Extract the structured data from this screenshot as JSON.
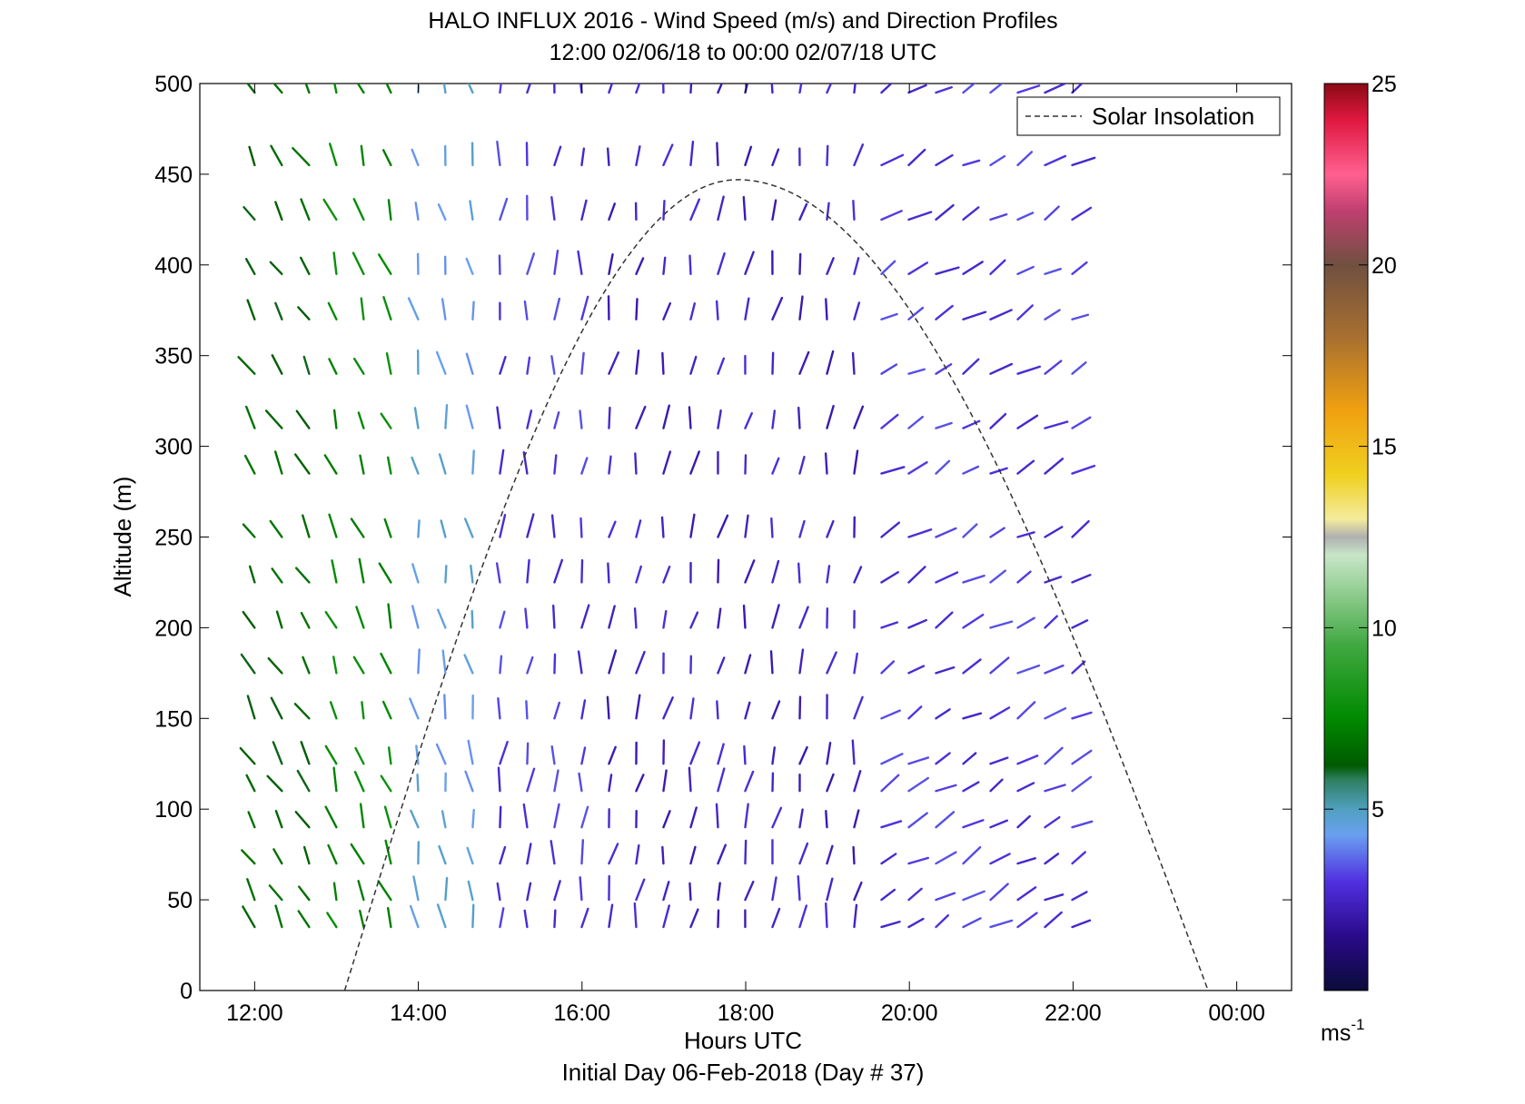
{
  "chart_data": {
    "type": "quiver",
    "title": "HALO INFLUX 2016 - Wind Speed (m/s) and Direction Profiles",
    "subtitle": "12:00 02/06/18 to 00:00 02/07/18  UTC",
    "xlabel": "Hours UTC",
    "xlabel2": "Initial Day 06-Feb-2018 (Day # 37)",
    "ylabel": "Altitude (m)",
    "x_ticks": [
      "12:00",
      "14:00",
      "16:00",
      "18:00",
      "20:00",
      "22:00",
      "00:00"
    ],
    "x_tick_values": [
      12,
      14,
      16,
      18,
      20,
      22,
      24
    ],
    "xlim": [
      11.33,
      24.67
    ],
    "y_ticks": [
      "0",
      "50",
      "100",
      "150",
      "200",
      "250",
      "300",
      "350",
      "400",
      "450",
      "500"
    ],
    "y_tick_values": [
      0,
      50,
      100,
      150,
      200,
      250,
      300,
      350,
      400,
      450,
      500
    ],
    "ylim": [
      0,
      500
    ],
    "colorbar": {
      "ticks": [
        "5",
        "10",
        "15",
        "20",
        "25"
      ],
      "tick_values": [
        5,
        10,
        15,
        20,
        25
      ],
      "range": [
        0,
        25
      ],
      "unit_base": "ms",
      "unit_exp": "-1",
      "stops": [
        {
          "v": 0,
          "c": "#0b0b3a"
        },
        {
          "v": 1.5,
          "c": "#2a0a8a"
        },
        {
          "v": 3,
          "c": "#5030e0"
        },
        {
          "v": 4.3,
          "c": "#6aa0f0"
        },
        {
          "v": 5,
          "c": "#50a0c0"
        },
        {
          "v": 5.8,
          "c": "#2e8060"
        },
        {
          "v": 6.2,
          "c": "#005a00"
        },
        {
          "v": 7.5,
          "c": "#008a00"
        },
        {
          "v": 9.5,
          "c": "#40a840"
        },
        {
          "v": 12,
          "c": "#c8e6c8"
        },
        {
          "v": 12.5,
          "c": "#b0b0b0"
        },
        {
          "v": 13,
          "c": "#f4ec9c"
        },
        {
          "v": 14.2,
          "c": "#f0d020"
        },
        {
          "v": 16,
          "c": "#f0a010"
        },
        {
          "v": 18,
          "c": "#a87030"
        },
        {
          "v": 20,
          "c": "#705040"
        },
        {
          "v": 21.5,
          "c": "#c04070"
        },
        {
          "v": 22.5,
          "c": "#ff6090"
        },
        {
          "v": 24,
          "c": "#e01840"
        },
        {
          "v": 25,
          "c": "#8a0a14"
        }
      ]
    },
    "legend": {
      "label": "Solar Insolation",
      "placement": "top-right"
    },
    "solar_curve": {
      "sunrise": 13.1,
      "sunset": 23.65,
      "peak_hour": 17.9,
      "peak_alt": 447
    },
    "heights": [
      35,
      50,
      70,
      90,
      110,
      125,
      150,
      175,
      200,
      225,
      250,
      285,
      310,
      340,
      370,
      395,
      425,
      455,
      495
    ],
    "time_step_hours": 0.333,
    "time_start": 12,
    "time_count": 31,
    "wind_fields": [
      {
        "t0": 12,
        "t1": 12.7,
        "dir": 330,
        "speed": 6.5
      },
      {
        "t0": 12.7,
        "t1": 13.9,
        "dir": 340,
        "speed": 7.5
      },
      {
        "t0": 13.9,
        "t1": 14.7,
        "dir": 350,
        "speed": 4.5
      },
      {
        "t0": 14.7,
        "t1": 16.0,
        "dir": 5,
        "speed": 3.0
      },
      {
        "t0": 16.0,
        "t1": 19.5,
        "dir": 10,
        "speed": 2.5
      },
      {
        "t0": 19.5,
        "t1": 24.1,
        "dir": 60,
        "speed": 3.0
      }
    ]
  }
}
